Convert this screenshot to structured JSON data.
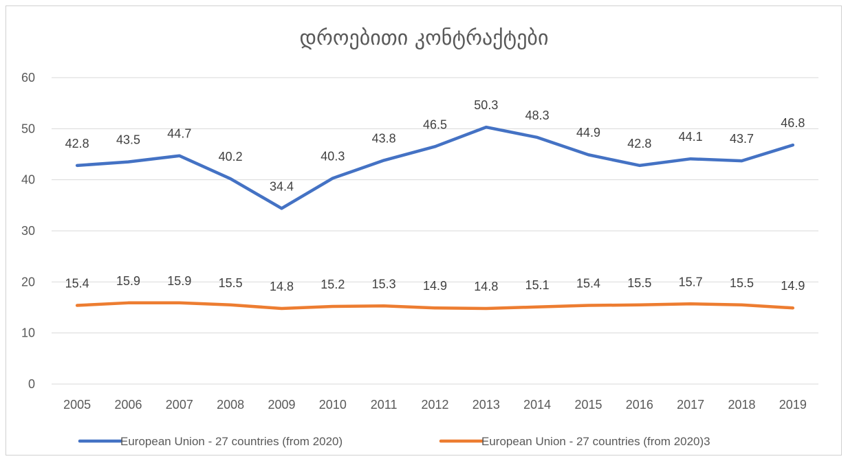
{
  "chart_data": {
    "type": "line",
    "title": "დროებითი კონტრაქტები",
    "categories": [
      "2005",
      "2006",
      "2007",
      "2008",
      "2009",
      "2010",
      "2011",
      "2012",
      "2013",
      "2014",
      "2015",
      "2016",
      "2017",
      "2018",
      "2019"
    ],
    "series": [
      {
        "name": "European Union - 27 countries (from 2020)",
        "color": "#4472C4",
        "values": [
          42.8,
          43.5,
          44.7,
          40.2,
          34.4,
          40.3,
          43.8,
          46.5,
          50.3,
          48.3,
          44.9,
          42.8,
          44.1,
          43.7,
          46.8
        ],
        "labels": [
          "42.8",
          "43.5",
          "44.7",
          "40.2",
          "34.4",
          "40.3",
          "43.8",
          "46.5",
          "50.3",
          "48.3",
          "44.9",
          "42.8",
          "44.1",
          "43.7",
          "46.8"
        ]
      },
      {
        "name": "European Union - 27 countries (from 2020)3",
        "color": "#ED7D31",
        "values": [
          15.4,
          15.9,
          15.9,
          15.5,
          14.8,
          15.2,
          15.3,
          14.9,
          14.8,
          15.1,
          15.4,
          15.5,
          15.7,
          15.5,
          14.9
        ],
        "labels": [
          "15.4",
          "15.9",
          "15.9",
          "15.5",
          "14.8",
          "15.2",
          "15.3",
          "14.9",
          "14.8",
          "15.1",
          "15.4",
          "15.5",
          "15.7",
          "15.5",
          "14.9"
        ]
      }
    ],
    "ylim": [
      0,
      60
    ],
    "yticks": [
      "0",
      "10",
      "20",
      "30",
      "40",
      "50",
      "60"
    ],
    "grid": true,
    "legend_position": "bottom"
  }
}
